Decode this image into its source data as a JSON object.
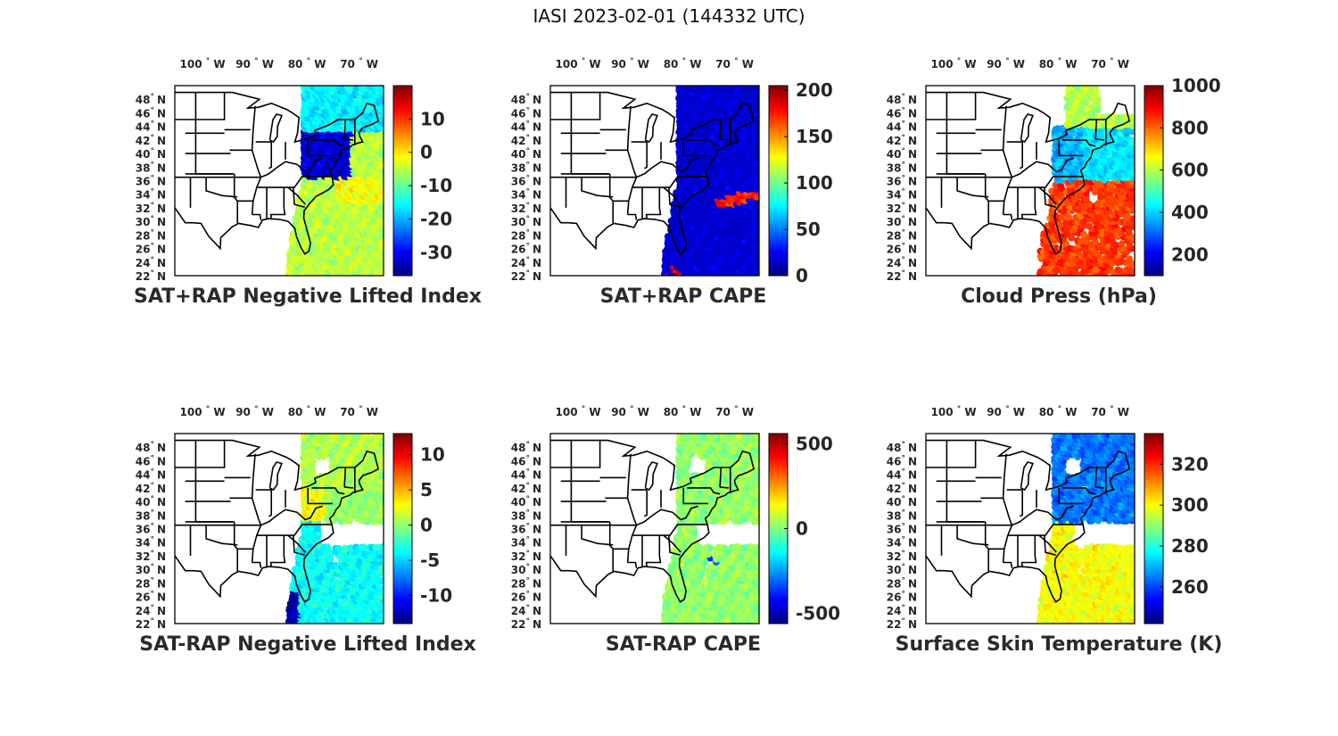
{
  "figure": {
    "title": "IASI 2023-02-01 (144332 UTC)"
  },
  "map_axes": {
    "lon_ticks": [
      "100",
      "90",
      "80",
      "70"
    ],
    "lon_suffix": "W",
    "lat_ticks": [
      "48",
      "46",
      "44",
      "42",
      "40",
      "38",
      "36",
      "34",
      "32",
      "30",
      "28",
      "26",
      "24",
      "22"
    ],
    "lat_suffix": "N",
    "degree_symbol": "°"
  },
  "colormap": "jet",
  "panels": [
    {
      "id": "sat-rap-nli",
      "title": "SAT+RAP Negative Lifted Index",
      "colorbar": {
        "min": -37,
        "max": 20,
        "ticks": [
          "10",
          "0",
          "-10",
          "-20",
          "-30"
        ],
        "tick_values": [
          10,
          0,
          -10,
          -20,
          -30
        ]
      },
      "swath": "full",
      "pattern": "nli"
    },
    {
      "id": "sat-rap-cape",
      "title": "SAT+RAP CAPE",
      "colorbar": {
        "min": 0,
        "max": 205,
        "ticks": [
          "200",
          "150",
          "100",
          "50",
          "0"
        ],
        "tick_values": [
          200,
          150,
          100,
          50,
          0
        ]
      },
      "swath": "full",
      "pattern": "cape"
    },
    {
      "id": "cloud-press",
      "title": "Cloud Press (hPa)",
      "colorbar": {
        "min": 100,
        "max": 1000,
        "ticks": [
          "1000",
          "800",
          "600",
          "400",
          "200"
        ],
        "tick_values": [
          1000,
          800,
          600,
          400,
          200
        ]
      },
      "swath": "cloudy",
      "pattern": "cloud"
    },
    {
      "id": "sat-minus-rap-nli",
      "title": "SAT-RAP Negative Lifted Index",
      "colorbar": {
        "min": -14,
        "max": 13,
        "ticks": [
          "10",
          "5",
          "0",
          "-5",
          "-10"
        ],
        "tick_values": [
          10,
          5,
          0,
          -5,
          -10
        ]
      },
      "swath": "clear",
      "pattern": "dnli"
    },
    {
      "id": "sat-minus-rap-cape",
      "title": "SAT-RAP CAPE",
      "colorbar": {
        "min": -560,
        "max": 560,
        "ticks": [
          "500",
          "0",
          "-500"
        ],
        "tick_values": [
          500,
          0,
          -500
        ]
      },
      "swath": "clear",
      "pattern": "dcape"
    },
    {
      "id": "skin-temp",
      "title": "Surface Skin Temperature (K)",
      "colorbar": {
        "min": 242,
        "max": 335,
        "ticks": [
          "320",
          "300",
          "280",
          "260"
        ],
        "tick_values": [
          320,
          300,
          280,
          260
        ]
      },
      "swath": "clear",
      "pattern": "tskin"
    }
  ]
}
